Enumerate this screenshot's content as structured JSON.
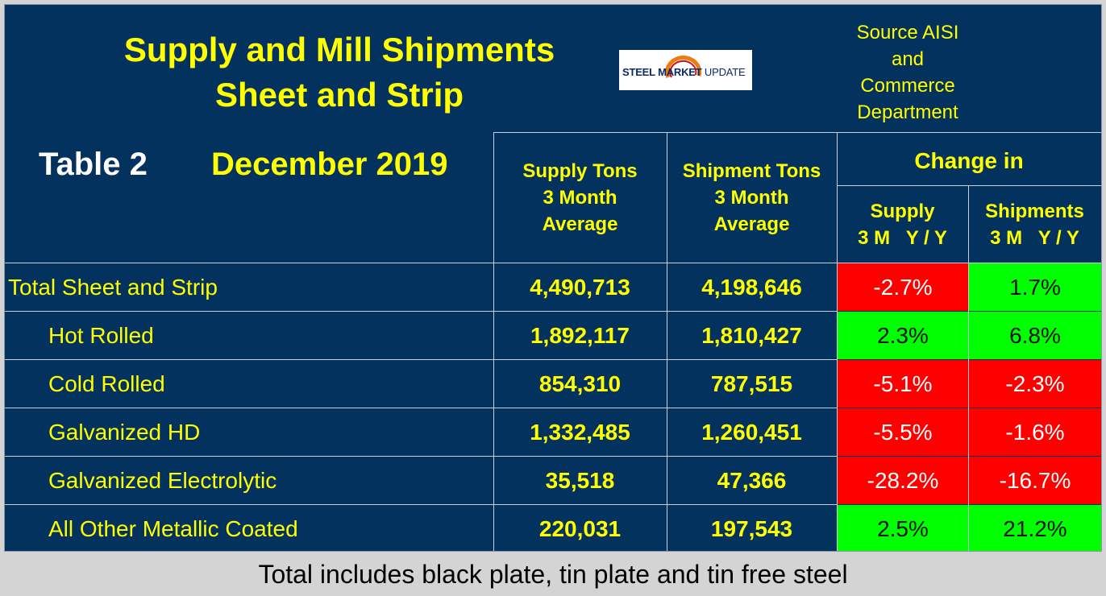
{
  "header": {
    "title_line1": "Supply and Mill Shipments",
    "title_line2": "Sheet and Strip",
    "table_label": "Table 2",
    "month_label": "December 2019",
    "source_lines": [
      "Source AISI",
      "and",
      "Commerce",
      "Department"
    ],
    "logo_steel_market": "STEEL MARKET",
    "logo_update": "UPDATE"
  },
  "columns": {
    "supply": [
      "Supply Tons",
      "3 Month",
      "Average"
    ],
    "shipment": [
      "Shipment Tons",
      "3 Month",
      "Average"
    ],
    "change_in": "Change in",
    "change_supply": [
      "Supply",
      "3 M   Y / Y"
    ],
    "change_shipments": [
      "Shipments",
      "3 M   Y / Y"
    ]
  },
  "rows": [
    {
      "label": "Total Sheet and Strip",
      "supply": "4,490,713",
      "shipment": "4,198,646",
      "chg_supply": "-2.7%",
      "chg_supply_color": "#ff0000",
      "chg_ship": "1.7%",
      "chg_ship_color": "#00ff00"
    },
    {
      "label": "Hot Rolled",
      "supply": "1,892,117",
      "shipment": "1,810,427",
      "chg_supply": "2.3%",
      "chg_supply_color": "#00ff00",
      "chg_ship": "6.8%",
      "chg_ship_color": "#00ff00"
    },
    {
      "label": "Cold Rolled",
      "supply": "854,310",
      "shipment": "787,515",
      "chg_supply": "-5.1%",
      "chg_supply_color": "#ff0000",
      "chg_ship": "-2.3%",
      "chg_ship_color": "#ff0000"
    },
    {
      "label": "Galvanized HD",
      "supply": "1,332,485",
      "shipment": "1,260,451",
      "chg_supply": "-5.5%",
      "chg_supply_color": "#ff0000",
      "chg_ship": "-1.6%",
      "chg_ship_color": "#ff0000"
    },
    {
      "label": "Galvanized Electrolytic",
      "supply": "35,518",
      "shipment": "47,366",
      "chg_supply": "-28.2%",
      "chg_supply_color": "#ff0000",
      "chg_ship": "-16.7%",
      "chg_ship_color": "#ff0000"
    },
    {
      "label": "All Other Metallic Coated",
      "supply": "220,031",
      "shipment": "197,543",
      "chg_supply": "2.5%",
      "chg_supply_color": "#00ff00",
      "chg_ship": "21.2%",
      "chg_ship_color": "#00ff00"
    }
  ],
  "footnote": "Total includes black plate, tin plate and tin free steel",
  "colors": {
    "panel_bg": "#04325f",
    "title_yellow": "#ffff00",
    "negative": "#ff0000",
    "positive": "#00ff00"
  }
}
